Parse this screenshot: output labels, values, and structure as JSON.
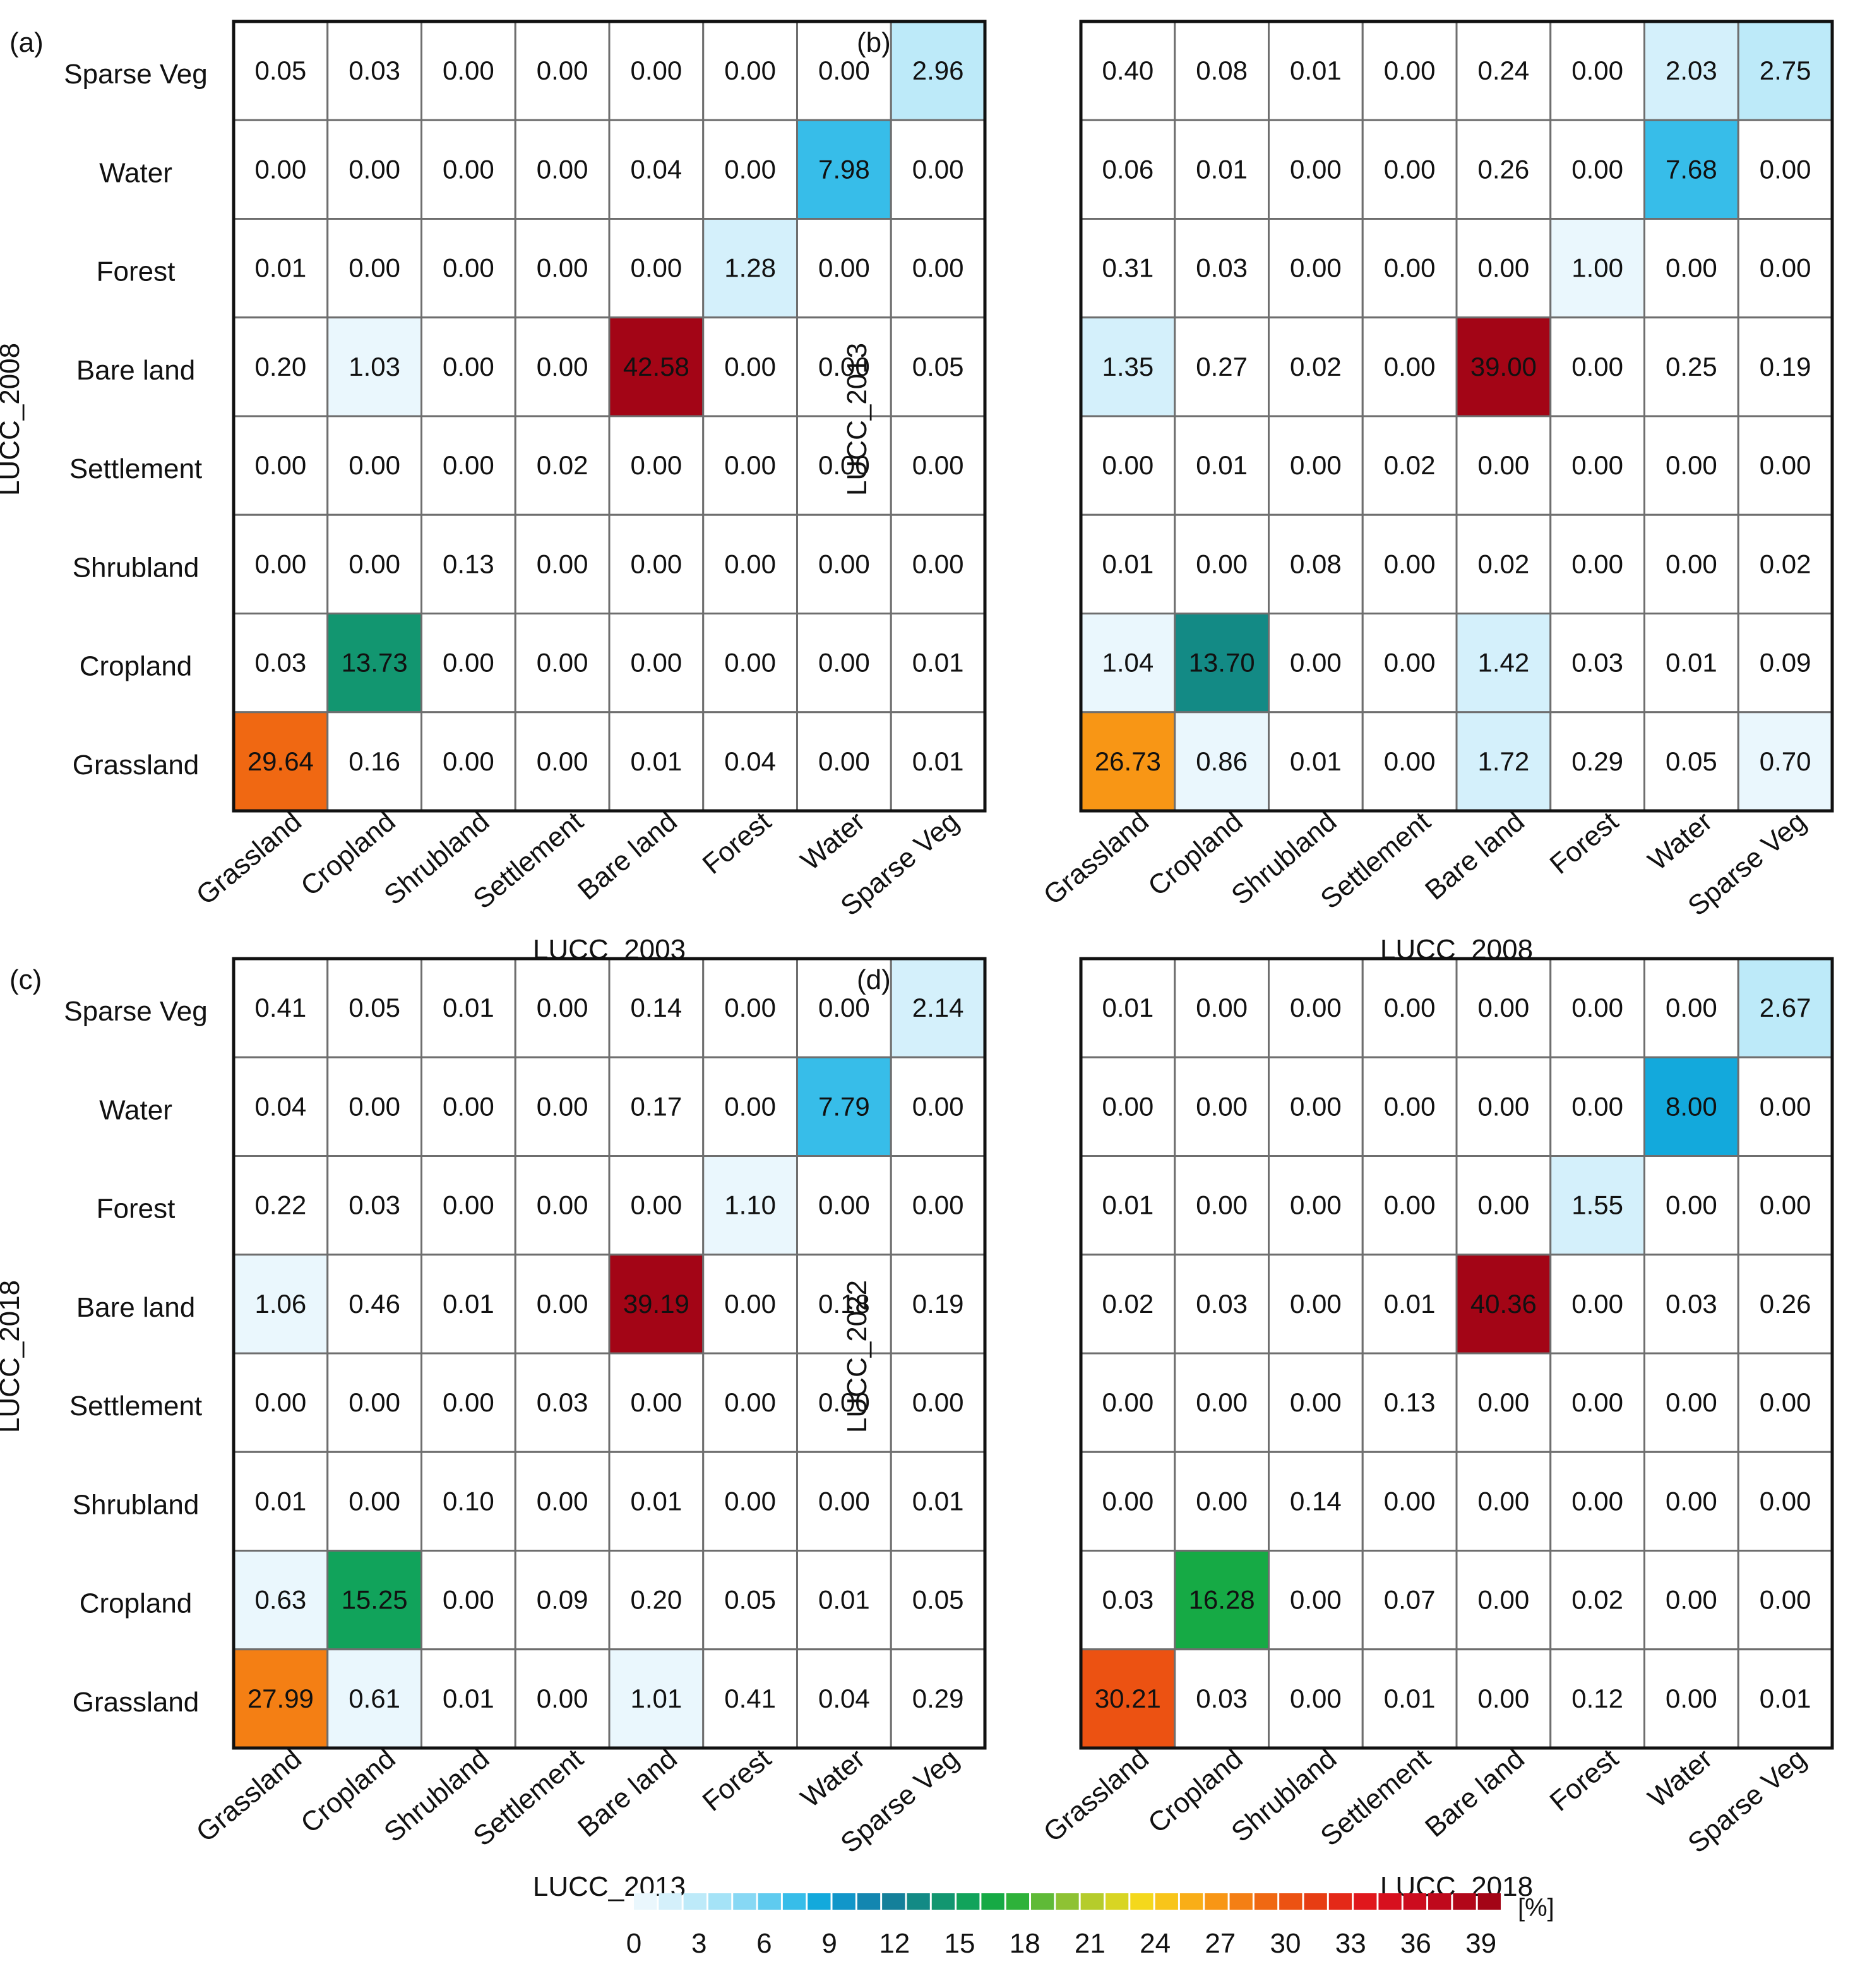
{
  "chart_data": [
    {
      "type": "heatmap",
      "panel_label": "(a)",
      "xlabel": "LUCC_2003",
      "ylabel": "LUCC_2008",
      "x_categories": [
        "Grassland",
        "Cropland",
        "Shrubland",
        "Settlement",
        "Bare land",
        "Forest",
        "Water",
        "Sparse Veg"
      ],
      "y_categories": [
        "Sparse Veg",
        "Water",
        "Forest",
        "Bare land",
        "Settlement",
        "Shrubland",
        "Cropland",
        "Grassland"
      ],
      "values": [
        [
          "0.05",
          "0.03",
          "0.00",
          "0.00",
          "0.00",
          "0.00",
          "0.00",
          "2.96"
        ],
        [
          "0.00",
          "0.00",
          "0.00",
          "0.00",
          "0.04",
          "0.00",
          "7.98",
          "0.00"
        ],
        [
          "0.01",
          "0.00",
          "0.00",
          "0.00",
          "0.00",
          "1.28",
          "0.00",
          "0.00"
        ],
        [
          "0.20",
          "1.03",
          "0.00",
          "0.00",
          "42.58",
          "0.00",
          "0.00",
          "0.05"
        ],
        [
          "0.00",
          "0.00",
          "0.00",
          "0.02",
          "0.00",
          "0.00",
          "0.00",
          "0.00"
        ],
        [
          "0.00",
          "0.00",
          "0.13",
          "0.00",
          "0.00",
          "0.00",
          "0.00",
          "0.00"
        ],
        [
          "0.03",
          "13.73",
          "0.00",
          "0.00",
          "0.00",
          "0.00",
          "0.00",
          "0.01"
        ],
        [
          "29.64",
          "0.16",
          "0.00",
          "0.00",
          "0.01",
          "0.04",
          "0.00",
          "0.01"
        ]
      ]
    },
    {
      "type": "heatmap",
      "panel_label": "(b)",
      "xlabel": "LUCC_2008",
      "ylabel": "LUCC_2013",
      "x_categories": [
        "Grassland",
        "Cropland",
        "Shrubland",
        "Settlement",
        "Bare land",
        "Forest",
        "Water",
        "Sparse Veg"
      ],
      "y_categories": [
        "Sparse Veg",
        "Water",
        "Forest",
        "Bare land",
        "Settlement",
        "Shrubland",
        "Cropland",
        "Grassland"
      ],
      "values": [
        [
          "0.40",
          "0.08",
          "0.01",
          "0.00",
          "0.24",
          "0.00",
          "2.03",
          "2.75"
        ],
        [
          "0.06",
          "0.01",
          "0.00",
          "0.00",
          "0.26",
          "0.00",
          "7.68",
          "0.00"
        ],
        [
          "0.31",
          "0.03",
          "0.00",
          "0.00",
          "0.00",
          "1.00",
          "0.00",
          "0.00"
        ],
        [
          "1.35",
          "0.27",
          "0.02",
          "0.00",
          "39.00",
          "0.00",
          "0.25",
          "0.19"
        ],
        [
          "0.00",
          "0.01",
          "0.00",
          "0.02",
          "0.00",
          "0.00",
          "0.00",
          "0.00"
        ],
        [
          "0.01",
          "0.00",
          "0.08",
          "0.00",
          "0.02",
          "0.00",
          "0.00",
          "0.02"
        ],
        [
          "1.04",
          "13.70",
          "0.00",
          "0.00",
          "1.42",
          "0.03",
          "0.01",
          "0.09"
        ],
        [
          "26.73",
          "0.86",
          "0.01",
          "0.00",
          "1.72",
          "0.29",
          "0.05",
          "0.70"
        ]
      ]
    },
    {
      "type": "heatmap",
      "panel_label": "(c)",
      "xlabel": "LUCC_2013",
      "ylabel": "LUCC_2018",
      "x_categories": [
        "Grassland",
        "Cropland",
        "Shrubland",
        "Settlement",
        "Bare land",
        "Forest",
        "Water",
        "Sparse Veg"
      ],
      "y_categories": [
        "Sparse Veg",
        "Water",
        "Forest",
        "Bare land",
        "Settlement",
        "Shrubland",
        "Cropland",
        "Grassland"
      ],
      "values": [
        [
          "0.41",
          "0.05",
          "0.01",
          "0.00",
          "0.14",
          "0.00",
          "0.00",
          "2.14"
        ],
        [
          "0.04",
          "0.00",
          "0.00",
          "0.00",
          "0.17",
          "0.00",
          "7.79",
          "0.00"
        ],
        [
          "0.22",
          "0.03",
          "0.00",
          "0.00",
          "0.00",
          "1.10",
          "0.00",
          "0.00"
        ],
        [
          "1.06",
          "0.46",
          "0.01",
          "0.00",
          "39.19",
          "0.00",
          "0.18",
          "0.19"
        ],
        [
          "0.00",
          "0.00",
          "0.00",
          "0.03",
          "0.00",
          "0.00",
          "0.00",
          "0.00"
        ],
        [
          "0.01",
          "0.00",
          "0.10",
          "0.00",
          "0.01",
          "0.00",
          "0.00",
          "0.01"
        ],
        [
          "0.63",
          "15.25",
          "0.00",
          "0.09",
          "0.20",
          "0.05",
          "0.01",
          "0.05"
        ],
        [
          "27.99",
          "0.61",
          "0.01",
          "0.00",
          "1.01",
          "0.41",
          "0.04",
          "0.29"
        ]
      ]
    },
    {
      "type": "heatmap",
      "panel_label": "(d)",
      "xlabel": "LUCC_2018",
      "ylabel": "LUCC_2022",
      "x_categories": [
        "Grassland",
        "Cropland",
        "Shrubland",
        "Settlement",
        "Bare land",
        "Forest",
        "Water",
        "Sparse Veg"
      ],
      "y_categories": [
        "Sparse Veg",
        "Water",
        "Forest",
        "Bare land",
        "Settlement",
        "Shrubland",
        "Cropland",
        "Grassland"
      ],
      "values": [
        [
          "0.01",
          "0.00",
          "0.00",
          "0.00",
          "0.00",
          "0.00",
          "0.00",
          "2.67"
        ],
        [
          "0.00",
          "0.00",
          "0.00",
          "0.00",
          "0.00",
          "0.00",
          "8.00",
          "0.00"
        ],
        [
          "0.01",
          "0.00",
          "0.00",
          "0.00",
          "0.00",
          "1.55",
          "0.00",
          "0.00"
        ],
        [
          "0.02",
          "0.03",
          "0.00",
          "0.01",
          "40.36",
          "0.00",
          "0.03",
          "0.26"
        ],
        [
          "0.00",
          "0.00",
          "0.00",
          "0.13",
          "0.00",
          "0.00",
          "0.00",
          "0.00"
        ],
        [
          "0.00",
          "0.00",
          "0.14",
          "0.00",
          "0.00",
          "0.00",
          "0.00",
          "0.00"
        ],
        [
          "0.03",
          "16.28",
          "0.00",
          "0.07",
          "0.00",
          "0.02",
          "0.00",
          "0.00"
        ],
        [
          "30.21",
          "0.03",
          "0.00",
          "0.01",
          "0.00",
          "0.12",
          "0.00",
          "0.01"
        ]
      ]
    }
  ],
  "colorbar": {
    "tick_labels": [
      "0",
      "3",
      "6",
      "9",
      "12",
      "15",
      "18",
      "21",
      "24",
      "27",
      "30",
      "33",
      "36",
      "39"
    ],
    "unit": "[%]",
    "vmin": 0,
    "vmax": 40,
    "colors": [
      "#eaf7fd",
      "#d4f0fb",
      "#bdeaf9",
      "#a5e3f7",
      "#87d8f4",
      "#5fcbef",
      "#37bde9",
      "#13a9dc",
      "#1196c9",
      "#1386b0",
      "#14809a",
      "#138a85",
      "#129670",
      "#11a35b",
      "#16aa45",
      "#2eb23a",
      "#5fba37",
      "#8ec233",
      "#b5cc2b",
      "#d8d523",
      "#f4d81c",
      "#f8c51a",
      "#f9ae17",
      "#f89615",
      "#f47f14",
      "#f06812",
      "#ec5212",
      "#e73d13",
      "#e42918",
      "#e0171c",
      "#d7101e",
      "#cc0c1e",
      "#bf091c",
      "#b20719",
      "#a30516"
    ]
  }
}
